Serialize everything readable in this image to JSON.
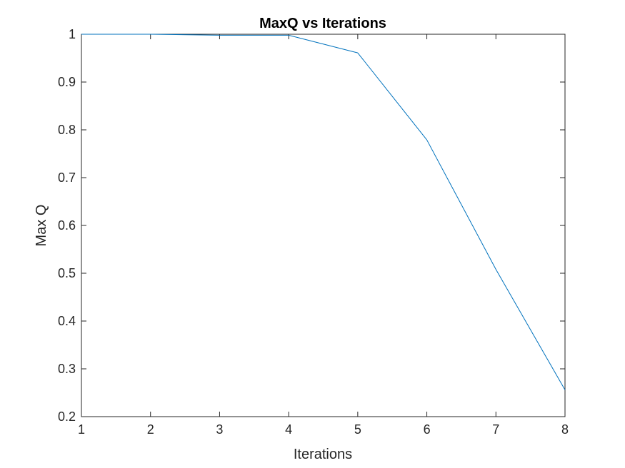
{
  "chart_data": {
    "type": "line",
    "title": "MaxQ vs Iterations",
    "xlabel": "Iterations",
    "ylabel": "Max Q",
    "x": [
      1,
      2,
      3,
      4,
      5,
      6,
      7,
      8
    ],
    "series": [
      {
        "name": "MaxQ",
        "values": [
          1.0,
          1.0,
          0.998,
          0.998,
          0.961,
          0.779,
          0.508,
          0.256
        ],
        "color": "#0072BD"
      }
    ],
    "xlim": [
      1,
      8
    ],
    "ylim": [
      0.2,
      1.0
    ],
    "xticks": [
      "1",
      "2",
      "3",
      "4",
      "5",
      "6",
      "7",
      "8"
    ],
    "yticks": [
      "0.2",
      "0.3",
      "0.4",
      "0.5",
      "0.6",
      "0.7",
      "0.8",
      "0.9",
      "1"
    ],
    "grid": false,
    "legend": "none",
    "axis_color": "#262626"
  }
}
